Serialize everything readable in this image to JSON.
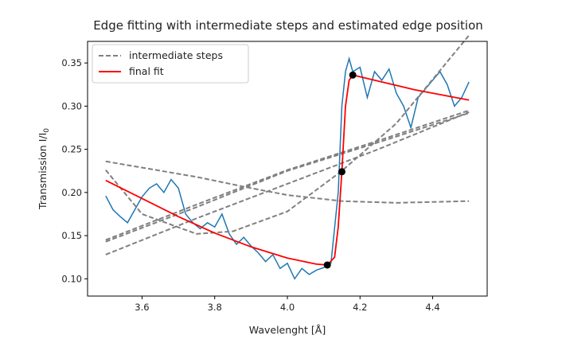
{
  "chart_data": {
    "type": "line",
    "title": "Edge fitting with intermediate steps and estimated edge position",
    "xlabel": "Wavelenght [Å]",
    "ylabel": "Transmission I/I",
    "ylabel_subscript": "0",
    "xlim": [
      3.45,
      4.55
    ],
    "ylim": [
      0.08,
      0.375
    ],
    "xticks": [
      3.6,
      3.8,
      4.0,
      4.2,
      4.4
    ],
    "xtick_labels": [
      "3.6",
      "3.8",
      "4.0",
      "4.2",
      "4.4"
    ],
    "yticks": [
      0.1,
      0.15,
      0.2,
      0.25,
      0.3,
      0.35
    ],
    "ytick_labels": [
      "0.10",
      "0.15",
      "0.20",
      "0.25",
      "0.30",
      "0.35"
    ],
    "grid": false,
    "legend_position": "top-left",
    "legend": [
      {
        "label": "intermediate steps",
        "color": "#808080",
        "style": "dashed"
      },
      {
        "label": "final fit",
        "color": "#ff0000",
        "style": "solid"
      }
    ],
    "data_series": {
      "color": "#1f77b4",
      "x": [
        3.5,
        3.52,
        3.54,
        3.56,
        3.58,
        3.6,
        3.62,
        3.64,
        3.66,
        3.68,
        3.7,
        3.72,
        3.74,
        3.76,
        3.78,
        3.8,
        3.82,
        3.84,
        3.86,
        3.88,
        3.9,
        3.92,
        3.94,
        3.96,
        3.98,
        4.0,
        4.02,
        4.04,
        4.06,
        4.08,
        4.1,
        4.12,
        4.14,
        4.15,
        4.16,
        4.17,
        4.18,
        4.2,
        4.22,
        4.24,
        4.26,
        4.28,
        4.3,
        4.32,
        4.34,
        4.36,
        4.38,
        4.4,
        4.42,
        4.44,
        4.46,
        4.48,
        4.5
      ],
      "y": [
        0.196,
        0.18,
        0.172,
        0.165,
        0.18,
        0.195,
        0.205,
        0.21,
        0.2,
        0.215,
        0.205,
        0.175,
        0.165,
        0.158,
        0.165,
        0.16,
        0.175,
        0.152,
        0.14,
        0.148,
        0.138,
        0.13,
        0.12,
        0.128,
        0.112,
        0.118,
        0.1,
        0.112,
        0.105,
        0.11,
        0.113,
        0.118,
        0.2,
        0.3,
        0.34,
        0.355,
        0.34,
        0.345,
        0.31,
        0.34,
        0.33,
        0.343,
        0.315,
        0.3,
        0.275,
        0.31,
        0.32,
        0.33,
        0.34,
        0.325,
        0.3,
        0.31,
        0.328
      ]
    },
    "intermediate_steps": [
      {
        "x": [
          3.5,
          3.75,
          4.0,
          4.25,
          4.5
        ],
        "y": [
          0.143,
          0.183,
          0.225,
          0.258,
          0.292
        ]
      },
      {
        "x": [
          3.5,
          3.75,
          4.0,
          4.25,
          4.5
        ],
        "y": [
          0.145,
          0.186,
          0.226,
          0.26,
          0.295
        ]
      },
      {
        "x": [
          3.5,
          3.75,
          4.0,
          4.25,
          4.5
        ],
        "y": [
          0.128,
          0.17,
          0.21,
          0.25,
          0.293
        ]
      },
      {
        "x": [
          3.5,
          3.75,
          3.9,
          4.0,
          4.15,
          4.3,
          4.5
        ],
        "y": [
          0.236,
          0.218,
          0.205,
          0.197,
          0.19,
          0.188,
          0.19
        ]
      },
      {
        "x": [
          3.5,
          3.6,
          3.75,
          3.85,
          4.0,
          4.15,
          4.3,
          4.5
        ],
        "y": [
          0.226,
          0.175,
          0.152,
          0.155,
          0.178,
          0.225,
          0.28,
          0.382
        ]
      }
    ],
    "final_fit": {
      "color": "#ff0000",
      "x": [
        3.5,
        3.6,
        3.7,
        3.8,
        3.9,
        4.0,
        4.08,
        4.11,
        4.13,
        4.14,
        4.15,
        4.16,
        4.17,
        4.18,
        4.25,
        4.35,
        4.5
      ],
      "y": [
        0.214,
        0.193,
        0.172,
        0.153,
        0.137,
        0.124,
        0.117,
        0.116,
        0.125,
        0.16,
        0.224,
        0.3,
        0.33,
        0.336,
        0.329,
        0.319,
        0.307
      ]
    },
    "edge_points": {
      "color": "#000000",
      "x": [
        4.11,
        4.15,
        4.18
      ],
      "y": [
        0.116,
        0.224,
        0.336
      ]
    }
  }
}
